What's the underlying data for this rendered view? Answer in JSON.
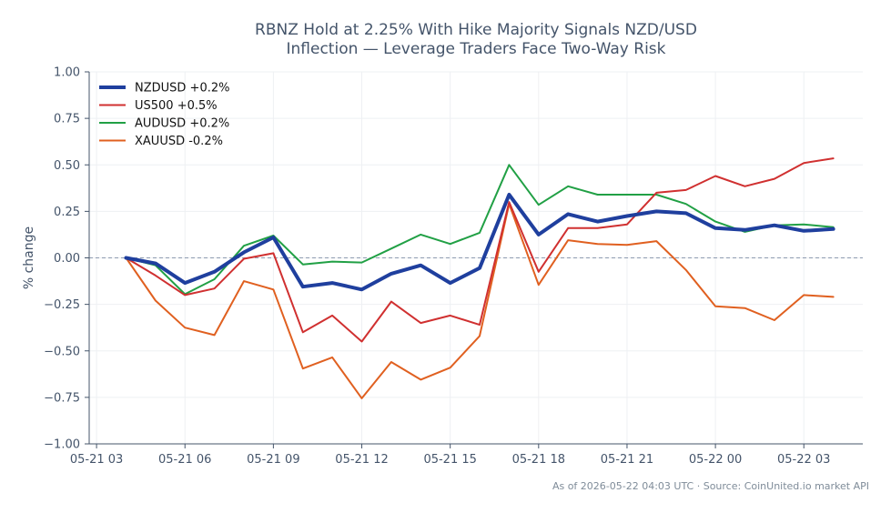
{
  "chart_data": {
    "type": "line",
    "title_lines": [
      "RBNZ Hold at 2.25% With Hike Majority Signals NZD/USD",
      "Inflection — Leverage Traders Face Two-Way Risk"
    ],
    "ylabel": "% change",
    "xlabel": "",
    "ylim": [
      -1.0,
      1.0
    ],
    "yticks": [
      1.0,
      0.75,
      0.5,
      0.25,
      0.0,
      -0.25,
      -0.5,
      -0.75,
      -1.0
    ],
    "ytick_labels": [
      "1.00",
      "0.75",
      "0.50",
      "0.25",
      "0.00",
      "−0.25",
      "−0.50",
      "−0.75",
      "−1.00"
    ],
    "xlim": [
      "2026-05-21 02:45",
      "2026-05-22 05:00"
    ],
    "xticks": [
      "2026-05-21 03:00",
      "2026-05-21 06:00",
      "2026-05-21 09:00",
      "2026-05-21 12:00",
      "2026-05-21 15:00",
      "2026-05-21 18:00",
      "2026-05-21 21:00",
      "2026-05-22 00:00",
      "2026-05-22 03:00"
    ],
    "xtick_labels": [
      "05-21 03",
      "05-21 06",
      "05-21 09",
      "05-21 12",
      "05-21 15",
      "05-21 18",
      "05-21 21",
      "05-22 00",
      "05-22 03"
    ],
    "x": [
      "2026-05-21 04:00",
      "2026-05-21 05:00",
      "2026-05-21 06:00",
      "2026-05-21 07:00",
      "2026-05-21 08:00",
      "2026-05-21 09:00",
      "2026-05-21 10:00",
      "2026-05-21 11:00",
      "2026-05-21 12:00",
      "2026-05-21 13:00",
      "2026-05-21 14:00",
      "2026-05-21 15:00",
      "2026-05-21 16:00",
      "2026-05-21 17:00",
      "2026-05-21 18:00",
      "2026-05-21 19:00",
      "2026-05-21 20:00",
      "2026-05-21 21:00",
      "2026-05-21 22:00",
      "2026-05-21 23:00",
      "2026-05-22 00:00",
      "2026-05-22 01:00",
      "2026-05-22 02:00",
      "2026-05-22 03:00",
      "2026-05-22 04:00"
    ],
    "series": [
      {
        "name": "NZDUSD +0.2%",
        "color": "#1f3f9e",
        "values": [
          0.0,
          -0.03,
          -0.135,
          -0.075,
          0.03,
          0.11,
          -0.155,
          -0.135,
          -0.17,
          -0.085,
          -0.04,
          -0.135,
          -0.055,
          0.34,
          0.125,
          0.235,
          0.195,
          0.225,
          0.25,
          0.24,
          0.16,
          0.15,
          0.175,
          0.145,
          0.155
        ]
      },
      {
        "name": "US500 +0.5%",
        "color": "#d03030",
        "values": [
          0.0,
          -0.095,
          -0.2,
          -0.165,
          -0.005,
          0.025,
          -0.4,
          -0.31,
          -0.45,
          -0.235,
          -0.35,
          -0.31,
          -0.36,
          0.3,
          -0.075,
          0.16,
          0.16,
          0.18,
          0.35,
          0.365,
          0.44,
          0.385,
          0.425,
          0.51,
          0.535
        ]
      },
      {
        "name": "AUDUSD +0.2%",
        "color": "#21a045",
        "values": [
          0.0,
          -0.04,
          -0.195,
          -0.115,
          0.065,
          0.12,
          -0.035,
          -0.02,
          -0.025,
          0.05,
          0.125,
          0.075,
          0.135,
          0.5,
          0.285,
          0.385,
          0.34,
          0.34,
          0.34,
          0.29,
          0.195,
          0.14,
          0.175,
          0.18,
          0.165
        ]
      },
      {
        "name": "XAUUSD -0.2%",
        "color": "#e06020",
        "values": [
          0.0,
          -0.23,
          -0.375,
          -0.415,
          -0.125,
          -0.17,
          -0.595,
          -0.535,
          -0.755,
          -0.56,
          -0.655,
          -0.59,
          -0.42,
          0.29,
          -0.145,
          0.095,
          0.075,
          0.07,
          0.09,
          -0.065,
          -0.26,
          -0.27,
          -0.335,
          -0.2,
          -0.21
        ]
      }
    ],
    "reference_line": 0.0,
    "grid": true,
    "legend_placement": "top-left"
  },
  "footer": {
    "note": "As of 2026-05-22 04:03 UTC · Source: CoinUnited.io market API"
  }
}
